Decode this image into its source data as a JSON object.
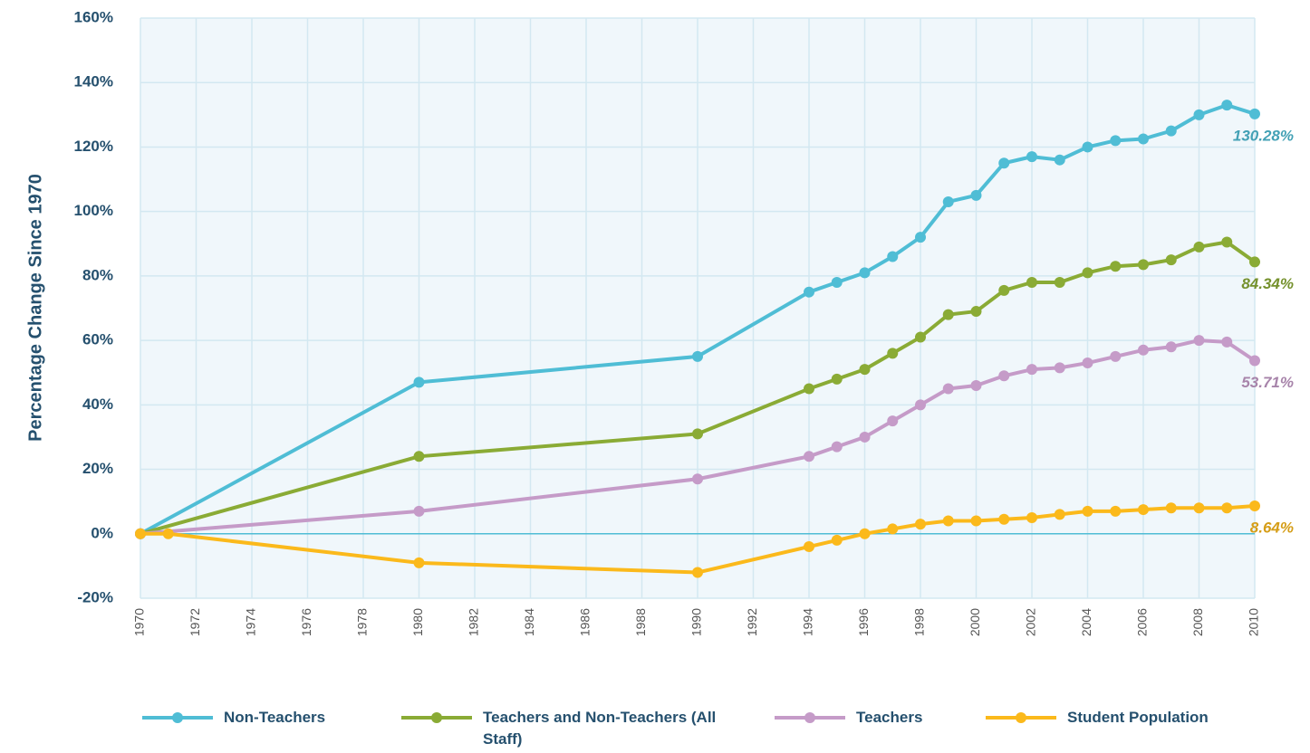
{
  "chart_data": {
    "type": "line",
    "ylabel": "Percentage Change Since 1970",
    "xlim": [
      1970,
      2010
    ],
    "xticks": [
      1970,
      1972,
      1974,
      1976,
      1978,
      1980,
      1982,
      1984,
      1986,
      1988,
      1990,
      1992,
      1994,
      1996,
      1998,
      2000,
      2002,
      2004,
      2006,
      2008,
      2010
    ],
    "ylim": [
      -20,
      160
    ],
    "yticks": [
      {
        "value": -20,
        "label": "-20%"
      },
      {
        "value": 0,
        "label": "0%"
      },
      {
        "value": 20,
        "label": "20%"
      },
      {
        "value": 40,
        "label": "40%"
      },
      {
        "value": 60,
        "label": "60%"
      },
      {
        "value": 80,
        "label": "80%"
      },
      {
        "value": 100,
        "label": "100%"
      },
      {
        "value": 120,
        "label": "120%"
      },
      {
        "value": 140,
        "label": "140%"
      },
      {
        "value": 160,
        "label": "160%"
      }
    ],
    "grid": true,
    "legend": "bottom",
    "series": [
      {
        "name": "Non-Teachers",
        "color": "#4fbdd5",
        "x": [
          1970,
          1980,
          1990,
          1994,
          1995,
          1996,
          1997,
          1998,
          1999,
          2000,
          2001,
          2002,
          2003,
          2004,
          2005,
          2006,
          2007,
          2008,
          2009,
          2010
        ],
        "values": [
          0,
          47,
          55,
          75,
          78,
          81,
          86,
          92,
          103,
          105,
          115,
          117,
          116,
          120,
          122,
          122.5,
          125,
          130,
          133,
          130.28
        ],
        "value_labels": [
          null,
          null,
          null,
          null,
          null,
          null,
          null,
          null,
          null,
          null,
          null,
          null,
          null,
          null,
          null,
          null,
          null,
          null,
          null,
          "130.28%"
        ]
      },
      {
        "name": "Teachers and Non-Teachers (All Staff)",
        "color": "#8aab35",
        "x": [
          1970,
          1980,
          1990,
          1994,
          1995,
          1996,
          1997,
          1998,
          1999,
          2000,
          2001,
          2002,
          2003,
          2004,
          2005,
          2006,
          2007,
          2008,
          2009,
          2010
        ],
        "values": [
          0,
          24,
          31,
          45,
          48,
          51,
          56,
          61,
          68,
          69,
          75.5,
          78,
          78,
          81,
          83,
          83.5,
          85,
          89,
          90.5,
          84.34
        ],
        "value_labels": [
          null,
          null,
          null,
          null,
          null,
          null,
          null,
          null,
          null,
          null,
          null,
          null,
          null,
          null,
          null,
          null,
          null,
          null,
          null,
          "84.34%"
        ]
      },
      {
        "name": "Teachers",
        "color": "#c59bc8",
        "x": [
          1970,
          1980,
          1990,
          1994,
          1995,
          1996,
          1997,
          1998,
          1999,
          2000,
          2001,
          2002,
          2003,
          2004,
          2005,
          2006,
          2007,
          2008,
          2009,
          2010
        ],
        "values": [
          0,
          7,
          17,
          24,
          27,
          30,
          35,
          40,
          45,
          46,
          49,
          51,
          51.5,
          53,
          55,
          57,
          58,
          60,
          59.5,
          53.71
        ],
        "value_labels": [
          null,
          null,
          null,
          null,
          null,
          null,
          null,
          null,
          null,
          null,
          null,
          null,
          null,
          null,
          null,
          null,
          null,
          null,
          null,
          "53.71%"
        ]
      },
      {
        "name": "Student Population",
        "color": "#fbb91b",
        "x": [
          1970,
          1971,
          1980,
          1990,
          1994,
          1995,
          1996,
          1997,
          1998,
          1999,
          2000,
          2001,
          2002,
          2003,
          2004,
          2005,
          2006,
          2007,
          2008,
          2009,
          2010
        ],
        "values": [
          0,
          0,
          -9,
          -12,
          -4,
          -2,
          0,
          1.5,
          3,
          4,
          4,
          4.5,
          5,
          6,
          7,
          7,
          7.5,
          8,
          8,
          8,
          8.64
        ],
        "value_labels": [
          null,
          null,
          null,
          null,
          null,
          null,
          null,
          null,
          null,
          null,
          null,
          null,
          null,
          null,
          null,
          null,
          null,
          null,
          null,
          null,
          "8.64%"
        ]
      }
    ]
  }
}
